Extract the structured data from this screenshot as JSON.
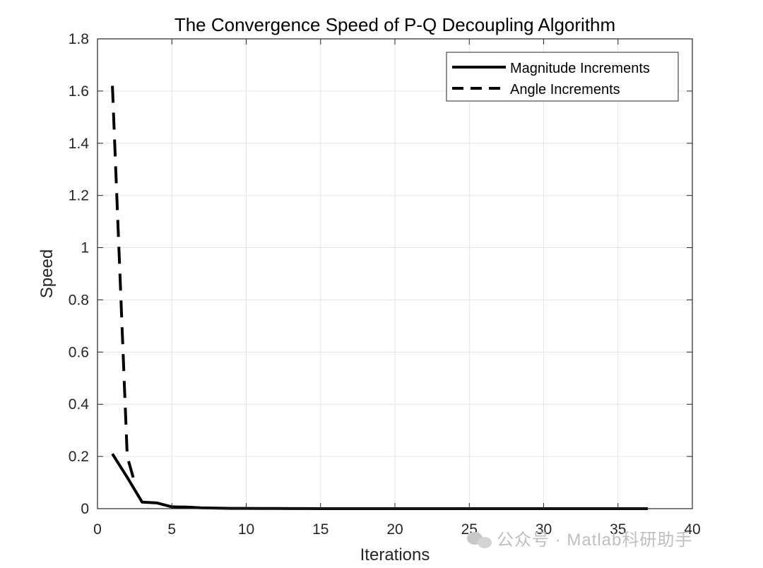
{
  "chart_data": {
    "type": "line",
    "title": "The Convergence Speed of P-Q Decoupling Algorithm",
    "xlabel": "Iterations",
    "ylabel": "Speed",
    "xlim": [
      0,
      40
    ],
    "ylim": [
      0,
      1.8
    ],
    "xticks": [
      0,
      5,
      10,
      15,
      20,
      25,
      30,
      35,
      40
    ],
    "yticks": [
      0,
      0.2,
      0.4,
      0.6,
      0.8,
      1,
      1.2,
      1.4,
      1.6,
      1.8
    ],
    "xtick_labels": [
      "0",
      "5",
      "10",
      "15",
      "20",
      "25",
      "30",
      "35",
      "40"
    ],
    "ytick_labels": [
      "0",
      "0.2",
      "0.4",
      "0.6",
      "0.8",
      "1",
      "1.2",
      "1.4",
      "1.6",
      "1.8"
    ],
    "grid": true,
    "legend_location": "top-right",
    "series": [
      {
        "name": "Magnitude Increments",
        "style": "solid",
        "x": [
          1,
          2,
          3,
          4,
          5,
          6,
          7,
          8,
          9,
          10,
          11,
          12,
          13,
          14,
          15,
          16,
          17,
          18,
          19,
          20,
          21,
          22,
          23,
          24,
          25,
          26,
          27,
          28,
          29,
          30,
          31,
          32,
          33,
          34,
          35,
          36,
          37
        ],
        "values": [
          0.21,
          0.12,
          0.025,
          0.022,
          0.007,
          0.006,
          0.003,
          0.002,
          0.001,
          0.001,
          0.0005,
          0.0005,
          0.0003,
          0.0002,
          0.0001,
          0.0001,
          0.0001,
          0,
          0,
          0,
          0,
          0,
          0,
          0,
          0,
          0,
          0,
          0,
          0,
          0,
          0,
          0,
          0,
          0,
          0,
          0,
          0
        ]
      },
      {
        "name": "Angle Increments",
        "style": "dashed",
        "x": [
          1,
          2,
          2.5
        ],
        "values": [
          1.62,
          0.2,
          0.1
        ]
      }
    ],
    "colors": {
      "line": "#000000",
      "grid": "#e6e6e6",
      "axis": "#262626"
    }
  },
  "watermark": {
    "text": "公众号 · Matlab科研助手",
    "icon": "wechat-icon"
  }
}
